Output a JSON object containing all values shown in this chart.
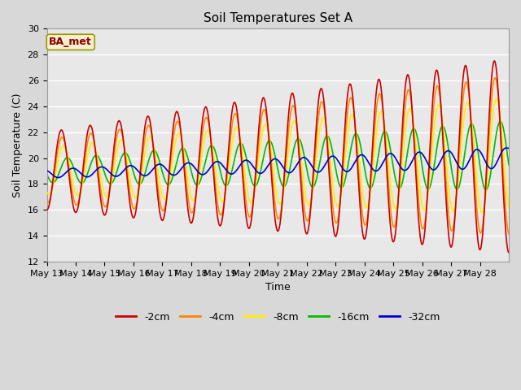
{
  "title": "Soil Temperatures Set A",
  "xlabel": "Time",
  "ylabel": "Soil Temperature (C)",
  "ylim": [
    12,
    30
  ],
  "yticks": [
    12,
    14,
    16,
    18,
    20,
    22,
    24,
    26,
    28,
    30
  ],
  "annotation": "BA_met",
  "legend_labels": [
    "-2cm",
    "-4cm",
    "-8cm",
    "-16cm",
    "-32cm"
  ],
  "legend_colors": [
    "#cc0000",
    "#ff8800",
    "#ffee00",
    "#00bb00",
    "#0000cc"
  ],
  "fig_bg_color": "#d8d8d8",
  "plot_bg_color": "#e8e8e8",
  "grid_color": "#ffffff",
  "title_fontsize": 11,
  "axis_fontsize": 9,
  "tick_fontsize": 8,
  "xtick_labels": [
    "May 13",
    "May 14",
    "May 15",
    "May 16",
    "May 17",
    "May 18",
    "May 19",
    "May 20",
    "May 21",
    "May 22",
    "May 23",
    "May 24",
    "May 25",
    "May 26",
    "May 27",
    "May 28"
  ]
}
